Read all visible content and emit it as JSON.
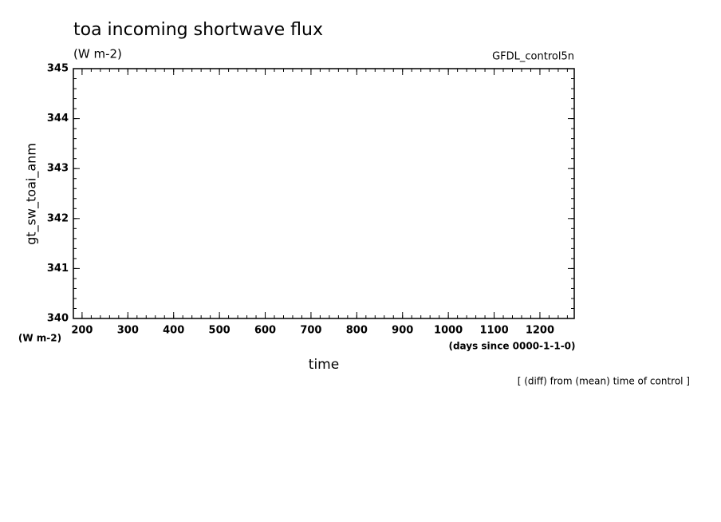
{
  "chart_data": {
    "type": "line",
    "title": "toa incoming shortwave flux",
    "subtitle": "(W m-2)",
    "dataset_label": "GFDL_control5n",
    "y_label": "gt_sw_toai_anm",
    "y_units": "(W m-2)",
    "x_label": "time",
    "x_units": "(days since 0000-1-1-0)",
    "note": "[ (diff) from (mean) time of control ]",
    "x": [],
    "series": [],
    "xlim": [
      181,
      1275
    ],
    "xticks": [
      200,
      300,
      400,
      500,
      600,
      700,
      800,
      900,
      1000,
      1100,
      1200
    ],
    "ylim": [
      340,
      345
    ],
    "yticks": [
      340,
      341,
      342,
      343,
      344,
      345
    ]
  }
}
